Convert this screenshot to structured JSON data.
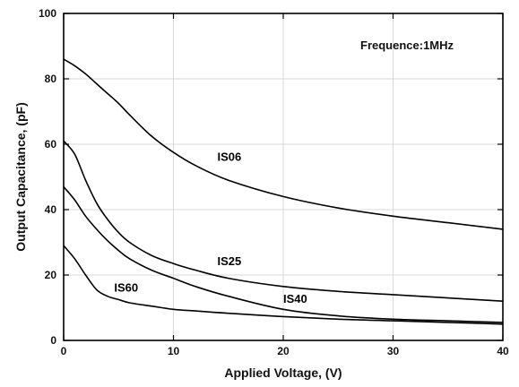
{
  "chart_data": {
    "type": "line",
    "title": "",
    "xlabel": "Applied Voltage, (V)",
    "ylabel": "Output Capacitance, (pF)",
    "xlim": [
      0,
      40
    ],
    "ylim": [
      0,
      100
    ],
    "xticks": [
      0,
      10,
      20,
      30,
      40
    ],
    "yticks": [
      0,
      20,
      40,
      60,
      80,
      100
    ],
    "grid": true,
    "annotation": "Frequence:1MHz",
    "series": [
      {
        "name": "IS06",
        "label_at": [
          14,
          55
        ],
        "x": [
          0,
          1,
          2,
          3,
          4,
          5,
          6,
          8,
          10,
          12,
          15,
          20,
          25,
          30,
          35,
          40
        ],
        "y": [
          86,
          84,
          81.5,
          78.5,
          75.5,
          72.5,
          69,
          62.5,
          57.5,
          53.5,
          49,
          44,
          40.5,
          38,
          36,
          34
        ]
      },
      {
        "name": "IS25",
        "label_at": [
          14,
          23
        ],
        "x": [
          0,
          1,
          2,
          3,
          4,
          5,
          6,
          8,
          10,
          12,
          15,
          20,
          25,
          30,
          35,
          40
        ],
        "y": [
          61,
          57,
          49,
          42,
          37,
          33,
          30,
          26,
          23.5,
          21.5,
          19,
          16.5,
          15,
          14,
          13,
          12
        ]
      },
      {
        "name": "IS40",
        "label_at": [
          20,
          11.5
        ],
        "x": [
          0,
          1,
          2,
          3,
          4,
          5,
          6,
          8,
          10,
          12,
          15,
          20,
          25,
          30,
          35,
          40
        ],
        "y": [
          47,
          43,
          38,
          34,
          30.5,
          27.5,
          25,
          21.5,
          19,
          16.5,
          13.5,
          9.5,
          7.5,
          6.5,
          6,
          5.5
        ]
      },
      {
        "name": "IS60",
        "label_at": [
          4.6,
          15
        ],
        "x": [
          0,
          1,
          2,
          3,
          4,
          5,
          6,
          8,
          10,
          12,
          15,
          20,
          25,
          30,
          35,
          40
        ],
        "y": [
          29,
          25,
          20,
          15.5,
          13.5,
          12.5,
          11.5,
          10.5,
          9.5,
          9,
          8.3,
          7.3,
          6.5,
          6,
          5.5,
          5
        ]
      }
    ]
  }
}
